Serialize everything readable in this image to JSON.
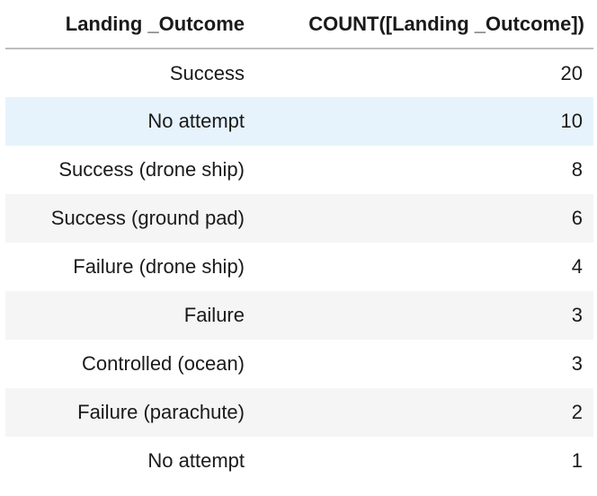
{
  "table": {
    "headers": [
      "Landing _Outcome",
      "COUNT([Landing _Outcome])"
    ],
    "rows": [
      {
        "outcome": "Success",
        "count": "20"
      },
      {
        "outcome": "No attempt",
        "count": "10"
      },
      {
        "outcome": "Success (drone ship)",
        "count": "8"
      },
      {
        "outcome": "Success (ground pad)",
        "count": "6"
      },
      {
        "outcome": "Failure (drone ship)",
        "count": "4"
      },
      {
        "outcome": "Failure",
        "count": "3"
      },
      {
        "outcome": "Controlled (ocean)",
        "count": "3"
      },
      {
        "outcome": "Failure (parachute)",
        "count": "2"
      },
      {
        "outcome": "No attempt",
        "count": "1"
      }
    ]
  },
  "colors": {
    "header_border": "#bdbdbd",
    "row_stripe": "#f5f5f5",
    "row_hover": "#e6f3fc"
  }
}
